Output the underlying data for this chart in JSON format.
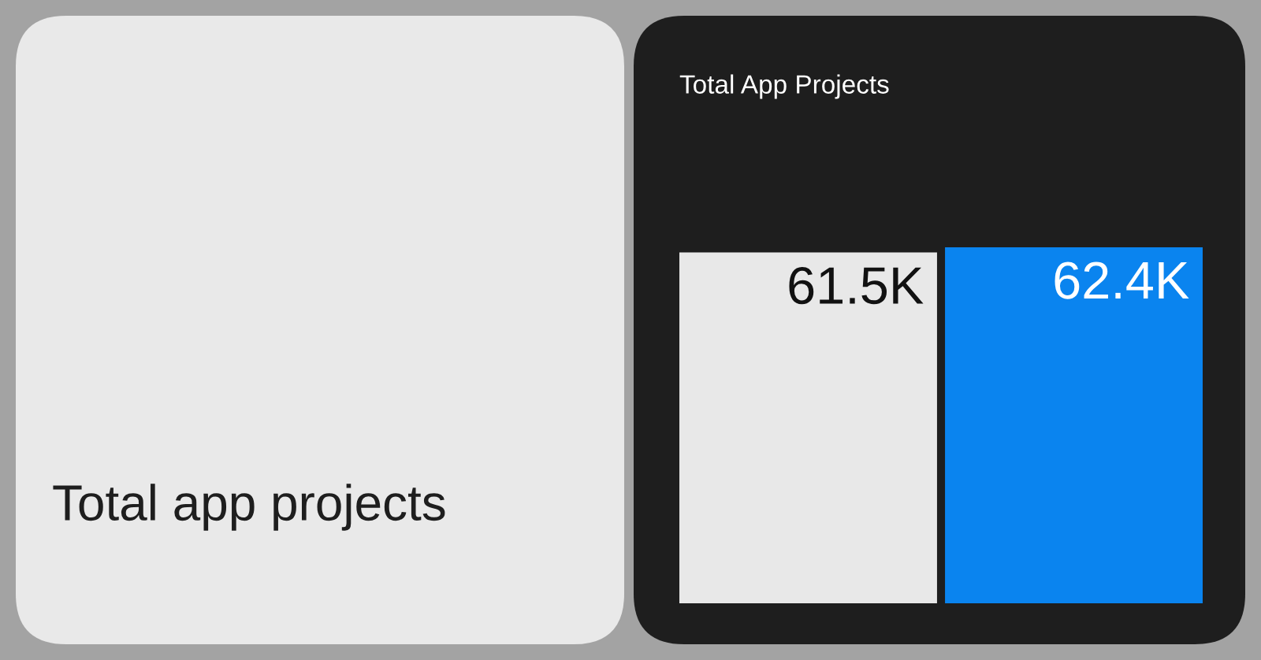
{
  "chart_data": {
    "type": "bar",
    "title": "Total App Projects",
    "categories": [
      null,
      null
    ],
    "values": [
      61.5,
      62.4
    ],
    "colors": [
      "#e8e8e8",
      "#0a84ef"
    ],
    "value_labels": [
      "61.5K",
      "62.4K"
    ],
    "annotations": [
      "Total app projects"
    ]
  }
}
